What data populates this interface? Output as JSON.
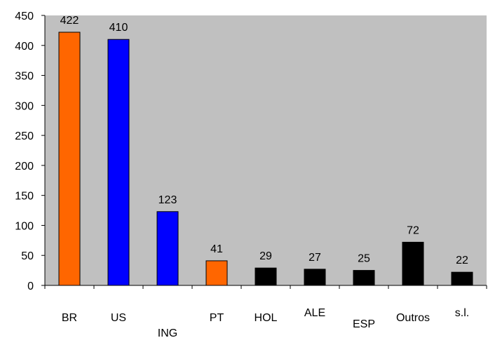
{
  "chart_data": {
    "type": "bar",
    "categories": [
      "BR",
      "US",
      "ING",
      "PT",
      "HOL",
      "ALE",
      "ESP",
      "Outros",
      "s.l."
    ],
    "values": [
      422,
      410,
      123,
      41,
      29,
      27,
      25,
      72,
      22
    ],
    "bar_colors": [
      "#FF6600",
      "#0000FF",
      "#0000FF",
      "#FF6600",
      "#000000",
      "#000000",
      "#000000",
      "#000000",
      "#000000"
    ],
    "ylim": [
      0,
      450
    ],
    "yticks": [
      0,
      50,
      100,
      150,
      200,
      250,
      300,
      350,
      400,
      450
    ],
    "plot_background": "#C0C0C0",
    "grid": false,
    "title": "",
    "xlabel": "",
    "ylabel": ""
  }
}
